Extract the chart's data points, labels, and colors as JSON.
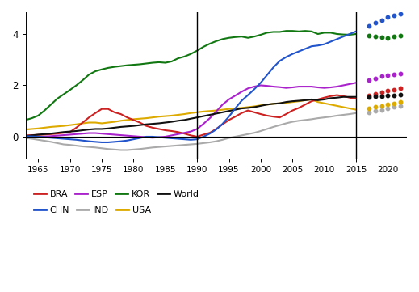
{
  "xlim": [
    1963,
    2023
  ],
  "ylim": [
    -0.85,
    4.85
  ],
  "xticks": [
    1965,
    1970,
    1975,
    1980,
    1985,
    1990,
    1995,
    2000,
    2005,
    2010,
    2015,
    2020
  ],
  "yticks": [
    0,
    2,
    4
  ],
  "vlines": [
    1990,
    2015
  ],
  "colors": {
    "BRA": "#cc2222",
    "CHN": "#2255cc",
    "ESP": "#aa22cc",
    "IND": "#aaaaaa",
    "KOR": "#117711",
    "USA": "#ddaa00",
    "World": "#111111"
  },
  "series": {
    "KOR": {
      "years": [
        1963,
        1964,
        1965,
        1966,
        1967,
        1968,
        1969,
        1970,
        1971,
        1972,
        1973,
        1974,
        1975,
        1976,
        1977,
        1978,
        1979,
        1980,
        1981,
        1982,
        1983,
        1984,
        1985,
        1986,
        1987,
        1988,
        1989,
        1990,
        1991,
        1992,
        1993,
        1994,
        1995,
        1996,
        1997,
        1998,
        1999,
        2000,
        2001,
        2002,
        2003,
        2004,
        2005,
        2006,
        2007,
        2008,
        2009,
        2010,
        2011,
        2012,
        2013,
        2014,
        2015
      ],
      "values": [
        0.65,
        0.72,
        0.82,
        1.02,
        1.25,
        1.48,
        1.65,
        1.82,
        2.0,
        2.2,
        2.42,
        2.55,
        2.62,
        2.68,
        2.72,
        2.75,
        2.78,
        2.8,
        2.82,
        2.85,
        2.88,
        2.9,
        2.88,
        2.93,
        3.05,
        3.12,
        3.22,
        3.35,
        3.5,
        3.62,
        3.72,
        3.8,
        3.85,
        3.88,
        3.9,
        3.85,
        3.9,
        3.97,
        4.05,
        4.08,
        4.08,
        4.12,
        4.12,
        4.1,
        4.12,
        4.1,
        4.0,
        4.05,
        4.05,
        4.0,
        3.98,
        3.97,
        4.0
      ],
      "forecast_years": [
        2017,
        2018,
        2019,
        2020,
        2021,
        2022
      ],
      "forecast_values": [
        3.95,
        3.9,
        3.88,
        3.85,
        3.9,
        3.95
      ]
    },
    "CHN": {
      "years": [
        1963,
        1964,
        1965,
        1966,
        1967,
        1968,
        1969,
        1970,
        1971,
        1972,
        1973,
        1974,
        1975,
        1976,
        1977,
        1978,
        1979,
        1980,
        1981,
        1982,
        1983,
        1984,
        1985,
        1986,
        1987,
        1988,
        1989,
        1990,
        1991,
        1992,
        1993,
        1994,
        1995,
        1996,
        1997,
        1998,
        1999,
        2000,
        2001,
        2002,
        2003,
        2004,
        2005,
        2006,
        2007,
        2008,
        2009,
        2010,
        2011,
        2012,
        2013,
        2014,
        2015
      ],
      "values": [
        0.02,
        0.01,
        0.0,
        -0.02,
        -0.04,
        -0.06,
        -0.08,
        -0.1,
        -0.12,
        -0.15,
        -0.18,
        -0.2,
        -0.22,
        -0.22,
        -0.2,
        -0.18,
        -0.15,
        -0.1,
        -0.05,
        0.0,
        0.0,
        -0.02,
        -0.04,
        -0.06,
        -0.08,
        -0.1,
        -0.12,
        -0.1,
        0.0,
        0.12,
        0.28,
        0.5,
        0.78,
        1.1,
        1.4,
        1.62,
        1.85,
        2.1,
        2.4,
        2.7,
        2.95,
        3.1,
        3.22,
        3.32,
        3.42,
        3.52,
        3.55,
        3.6,
        3.7,
        3.8,
        3.9,
        4.0,
        4.1
      ],
      "forecast_years": [
        2017,
        2018,
        2019,
        2020,
        2021,
        2022
      ],
      "forecast_values": [
        4.3,
        4.45,
        4.55,
        4.65,
        4.72,
        4.8
      ]
    },
    "ESP": {
      "years": [
        1963,
        1964,
        1965,
        1966,
        1967,
        1968,
        1969,
        1970,
        1971,
        1972,
        1973,
        1974,
        1975,
        1976,
        1977,
        1978,
        1979,
        1980,
        1981,
        1982,
        1983,
        1984,
        1985,
        1986,
        1987,
        1988,
        1989,
        1990,
        1991,
        1992,
        1993,
        1994,
        1995,
        1996,
        1997,
        1998,
        1999,
        2000,
        2001,
        2002,
        2003,
        2004,
        2005,
        2006,
        2007,
        2008,
        2009,
        2010,
        2011,
        2012,
        2013,
        2014,
        2015
      ],
      "values": [
        -0.02,
        -0.02,
        -0.01,
        0.0,
        0.02,
        0.04,
        0.06,
        0.08,
        0.1,
        0.12,
        0.14,
        0.14,
        0.12,
        0.1,
        0.08,
        0.06,
        0.04,
        0.02,
        0.0,
        -0.02,
        -0.04,
        -0.02,
        0.0,
        0.05,
        0.1,
        0.15,
        0.2,
        0.3,
        0.5,
        0.72,
        0.98,
        1.25,
        1.45,
        1.6,
        1.75,
        1.88,
        1.95,
        2.0,
        1.98,
        1.95,
        1.93,
        1.9,
        1.92,
        1.95,
        1.95,
        1.95,
        1.92,
        1.9,
        1.92,
        1.95,
        2.0,
        2.05,
        2.1
      ],
      "forecast_years": [
        2017,
        2018,
        2019,
        2020,
        2021,
        2022
      ],
      "forecast_values": [
        2.2,
        2.28,
        2.35,
        2.38,
        2.42,
        2.45
      ]
    },
    "BRA": {
      "years": [
        1963,
        1964,
        1965,
        1966,
        1967,
        1968,
        1969,
        1970,
        1971,
        1972,
        1973,
        1974,
        1975,
        1976,
        1977,
        1978,
        1979,
        1980,
        1981,
        1982,
        1983,
        1984,
        1985,
        1986,
        1987,
        1988,
        1989,
        1990,
        1991,
        1992,
        1993,
        1994,
        1995,
        1996,
        1997,
        1998,
        1999,
        2000,
        2001,
        2002,
        2003,
        2004,
        2005,
        2006,
        2007,
        2008,
        2009,
        2010,
        2011,
        2012,
        2013,
        2014,
        2015
      ],
      "values": [
        0.05,
        0.06,
        0.07,
        0.08,
        0.1,
        0.12,
        0.15,
        0.18,
        0.35,
        0.55,
        0.75,
        0.92,
        1.08,
        1.08,
        0.95,
        0.88,
        0.75,
        0.65,
        0.55,
        0.42,
        0.35,
        0.3,
        0.25,
        0.22,
        0.18,
        0.12,
        0.05,
        0.0,
        0.08,
        0.15,
        0.3,
        0.48,
        0.65,
        0.78,
        0.92,
        1.02,
        0.95,
        0.88,
        0.82,
        0.78,
        0.75,
        0.88,
        1.02,
        1.12,
        1.25,
        1.38,
        1.45,
        1.52,
        1.58,
        1.62,
        1.58,
        1.52,
        1.48
      ],
      "forecast_years": [
        2017,
        2018,
        2019,
        2020,
        2021,
        2022
      ],
      "forecast_values": [
        1.62,
        1.68,
        1.72,
        1.78,
        1.82,
        1.88
      ]
    },
    "World": {
      "years": [
        1963,
        1964,
        1965,
        1966,
        1967,
        1968,
        1969,
        1970,
        1971,
        1972,
        1973,
        1974,
        1975,
        1976,
        1977,
        1978,
        1979,
        1980,
        1981,
        1982,
        1983,
        1984,
        1985,
        1986,
        1987,
        1988,
        1989,
        1990,
        1991,
        1992,
        1993,
        1994,
        1995,
        1996,
        1997,
        1998,
        1999,
        2000,
        2001,
        2002,
        2003,
        2004,
        2005,
        2006,
        2007,
        2008,
        2009,
        2010,
        2011,
        2012,
        2013,
        2014,
        2015
      ],
      "values": [
        0.02,
        0.05,
        0.08,
        0.1,
        0.12,
        0.15,
        0.18,
        0.2,
        0.22,
        0.25,
        0.28,
        0.3,
        0.3,
        0.32,
        0.35,
        0.38,
        0.4,
        0.42,
        0.45,
        0.48,
        0.5,
        0.52,
        0.55,
        0.58,
        0.62,
        0.65,
        0.7,
        0.75,
        0.8,
        0.85,
        0.9,
        0.95,
        1.0,
        1.05,
        1.1,
        1.12,
        1.15,
        1.2,
        1.25,
        1.28,
        1.3,
        1.35,
        1.38,
        1.4,
        1.42,
        1.45,
        1.42,
        1.45,
        1.5,
        1.52,
        1.55,
        1.55,
        1.55
      ],
      "forecast_years": [
        2017,
        2018,
        2019,
        2020,
        2021,
        2022
      ],
      "forecast_values": [
        1.55,
        1.57,
        1.58,
        1.6,
        1.62,
        1.63
      ]
    },
    "USA": {
      "years": [
        1963,
        1964,
        1965,
        1966,
        1967,
        1968,
        1969,
        1970,
        1971,
        1972,
        1973,
        1974,
        1975,
        1976,
        1977,
        1978,
        1979,
        1980,
        1981,
        1982,
        1983,
        1984,
        1985,
        1986,
        1987,
        1988,
        1989,
        1990,
        1991,
        1992,
        1993,
        1994,
        1995,
        1996,
        1997,
        1998,
        1999,
        2000,
        2001,
        2002,
        2003,
        2004,
        2005,
        2006,
        2007,
        2008,
        2009,
        2010,
        2011,
        2012,
        2013,
        2014,
        2015
      ],
      "values": [
        0.28,
        0.3,
        0.32,
        0.35,
        0.38,
        0.4,
        0.42,
        0.45,
        0.48,
        0.52,
        0.55,
        0.55,
        0.52,
        0.55,
        0.58,
        0.62,
        0.65,
        0.68,
        0.7,
        0.72,
        0.75,
        0.78,
        0.8,
        0.82,
        0.85,
        0.88,
        0.92,
        0.95,
        0.98,
        1.0,
        1.02,
        1.05,
        1.08,
        1.1,
        1.12,
        1.15,
        1.18,
        1.22,
        1.25,
        1.28,
        1.3,
        1.32,
        1.35,
        1.38,
        1.42,
        1.45,
        1.35,
        1.3,
        1.25,
        1.2,
        1.15,
        1.1,
        1.05
      ],
      "forecast_years": [
        2017,
        2018,
        2019,
        2020,
        2021,
        2022
      ],
      "forecast_values": [
        1.1,
        1.15,
        1.2,
        1.25,
        1.3,
        1.35
      ]
    },
    "IND": {
      "years": [
        1963,
        1964,
        1965,
        1966,
        1967,
        1968,
        1969,
        1970,
        1971,
        1972,
        1973,
        1974,
        1975,
        1976,
        1977,
        1978,
        1979,
        1980,
        1981,
        1982,
        1983,
        1984,
        1985,
        1986,
        1987,
        1988,
        1989,
        1990,
        1991,
        1992,
        1993,
        1994,
        1995,
        1996,
        1997,
        1998,
        1999,
        2000,
        2001,
        2002,
        2003,
        2004,
        2005,
        2006,
        2007,
        2008,
        2009,
        2010,
        2011,
        2012,
        2013,
        2014,
        2015
      ],
      "values": [
        -0.05,
        -0.08,
        -0.12,
        -0.16,
        -0.2,
        -0.25,
        -0.3,
        -0.32,
        -0.35,
        -0.38,
        -0.4,
        -0.42,
        -0.45,
        -0.48,
        -0.5,
        -0.52,
        -0.52,
        -0.5,
        -0.48,
        -0.45,
        -0.42,
        -0.4,
        -0.38,
        -0.36,
        -0.34,
        -0.32,
        -0.3,
        -0.28,
        -0.25,
        -0.22,
        -0.18,
        -0.12,
        -0.05,
        0.0,
        0.05,
        0.1,
        0.15,
        0.22,
        0.3,
        0.38,
        0.45,
        0.52,
        0.58,
        0.62,
        0.65,
        0.68,
        0.72,
        0.75,
        0.78,
        0.82,
        0.85,
        0.88,
        0.92
      ],
      "forecast_years": [
        2017,
        2018,
        2019,
        2020,
        2021,
        2022
      ],
      "forecast_values": [
        0.95,
        1.0,
        1.05,
        1.1,
        1.15,
        1.2
      ]
    }
  },
  "legend_row1": [
    {
      "label": "BRA",
      "color": "#cc2222"
    },
    {
      "label": "ESP",
      "color": "#aa22cc"
    },
    {
      "label": "KOR",
      "color": "#117711"
    },
    {
      "label": "World",
      "color": "#111111"
    }
  ],
  "legend_row2": [
    {
      "label": "CHN",
      "color": "#2255cc"
    },
    {
      "label": "IND",
      "color": "#aaaaaa"
    },
    {
      "label": "USA",
      "color": "#ddaa00"
    }
  ]
}
